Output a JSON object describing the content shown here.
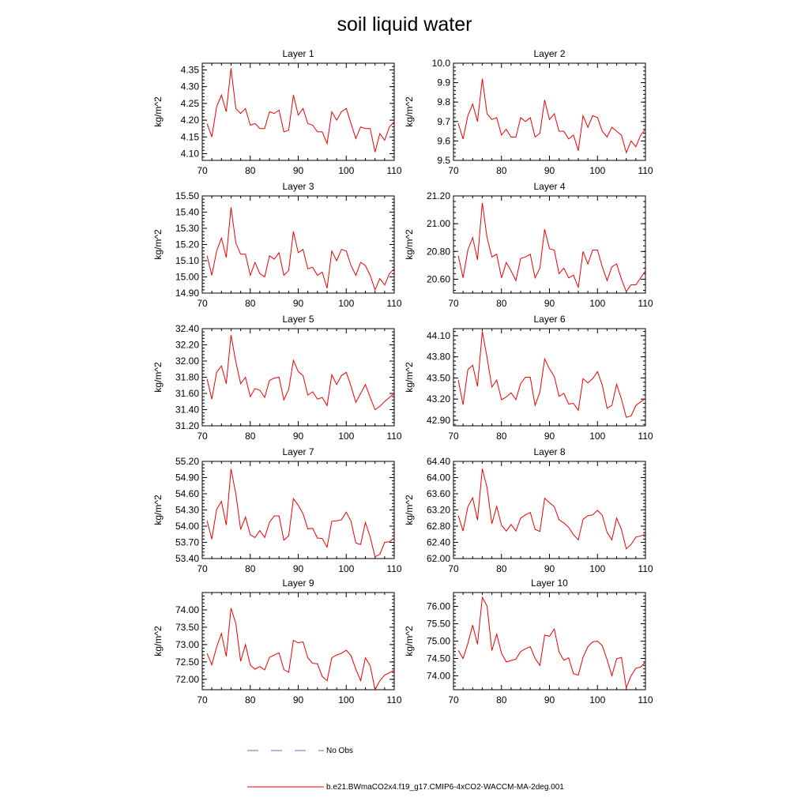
{
  "chart_data": {
    "title": "soil liquid water",
    "type": "line",
    "xlim": [
      70,
      110
    ],
    "xticks": [
      "70",
      "80",
      "90",
      "100",
      "110"
    ],
    "x": [
      71,
      72,
      73,
      74,
      75,
      76,
      77,
      78,
      79,
      80,
      81,
      82,
      83,
      84,
      85,
      86,
      87,
      88,
      89,
      90,
      91,
      92,
      93,
      94,
      95,
      96,
      97,
      98,
      99,
      100,
      101,
      102,
      103,
      104,
      105,
      106,
      107,
      108,
      109,
      110
    ],
    "legend": [
      {
        "label": "No Obs",
        "style": "dashed",
        "color": "#6a6ad0"
      },
      {
        "label": "b.e21.BWmaCO2x4.f19_g17.CMIP6-4xCO2-WACCM-MA-2deg.001",
        "style": "solid",
        "color": "#ee0000"
      }
    ],
    "panels": [
      {
        "title": "Layer 1",
        "ylabel": "kg/m^2",
        "ylim": [
          4.08,
          4.37
        ],
        "yticks": [
          "4.10",
          "4.15",
          "4.20",
          "4.25",
          "4.30",
          "4.35"
        ],
        "ytick_values": [
          4.1,
          4.15,
          4.2,
          4.25,
          4.3,
          4.35
        ],
        "values": [
          4.19,
          4.15,
          4.24,
          4.275,
          4.225,
          4.355,
          4.235,
          4.22,
          4.235,
          4.185,
          4.19,
          4.175,
          4.175,
          4.225,
          4.22,
          4.23,
          4.165,
          4.17,
          4.275,
          4.215,
          4.235,
          4.19,
          4.185,
          4.165,
          4.165,
          4.13,
          4.225,
          4.2,
          4.225,
          4.235,
          4.19,
          4.145,
          4.18,
          4.175,
          4.175,
          4.105,
          4.16,
          4.14,
          4.18,
          4.195
        ]
      },
      {
        "title": "Layer 2",
        "ylabel": "kg/m^2",
        "ylim": [
          9.5,
          10.0
        ],
        "yticks": [
          "9.5",
          "9.6",
          "9.7",
          "9.8",
          "9.9",
          "10.0"
        ],
        "ytick_values": [
          9.5,
          9.6,
          9.7,
          9.8,
          9.9,
          10.0
        ],
        "values": [
          9.69,
          9.61,
          9.73,
          9.79,
          9.7,
          9.92,
          9.74,
          9.71,
          9.72,
          9.63,
          9.66,
          9.62,
          9.62,
          9.72,
          9.7,
          9.72,
          9.62,
          9.64,
          9.81,
          9.71,
          9.74,
          9.65,
          9.65,
          9.61,
          9.63,
          9.55,
          9.73,
          9.67,
          9.73,
          9.72,
          9.65,
          9.62,
          9.67,
          9.65,
          9.63,
          9.54,
          9.6,
          9.57,
          9.63,
          9.66
        ]
      },
      {
        "title": "Layer 3",
        "ylabel": "kg/m^2",
        "ylim": [
          14.9,
          15.5
        ],
        "yticks": [
          "14.90",
          "15.00",
          "15.10",
          "15.20",
          "15.30",
          "15.40",
          "15.50"
        ],
        "ytick_values": [
          14.9,
          15.0,
          15.1,
          15.2,
          15.3,
          15.4,
          15.5
        ],
        "values": [
          15.13,
          15.01,
          15.16,
          15.24,
          15.12,
          15.43,
          15.21,
          15.14,
          15.14,
          15.01,
          15.09,
          15.02,
          15.0,
          15.13,
          15.11,
          15.15,
          15.01,
          15.04,
          15.28,
          15.15,
          15.17,
          15.05,
          15.06,
          15.01,
          15.03,
          14.93,
          15.16,
          15.1,
          15.17,
          15.16,
          15.07,
          15.01,
          15.09,
          15.07,
          15.01,
          14.92,
          14.99,
          14.95,
          15.02,
          15.05
        ]
      },
      {
        "title": "Layer 4",
        "ylabel": "kg/m^2",
        "ylim": [
          20.5,
          21.2
        ],
        "yticks": [
          "20.60",
          "20.80",
          "21.00",
          "21.20"
        ],
        "ytick_values": [
          20.6,
          20.8,
          21.0,
          21.2
        ],
        "values": [
          20.77,
          20.61,
          20.81,
          20.9,
          20.74,
          21.15,
          20.9,
          20.76,
          20.78,
          20.61,
          20.72,
          20.66,
          20.59,
          20.75,
          20.76,
          20.78,
          20.61,
          20.68,
          20.96,
          20.82,
          20.81,
          20.64,
          20.68,
          20.61,
          20.63,
          20.54,
          20.8,
          20.71,
          20.81,
          20.81,
          20.69,
          20.59,
          20.69,
          20.71,
          20.6,
          20.51,
          20.56,
          20.56,
          20.61,
          20.66
        ]
      },
      {
        "title": "Layer 5",
        "ylabel": "kg/m^2",
        "ylim": [
          31.2,
          32.4
        ],
        "yticks": [
          "31.20",
          "31.40",
          "31.60",
          "31.80",
          "32.00",
          "32.20",
          "32.40"
        ],
        "ytick_values": [
          31.2,
          31.4,
          31.6,
          31.8,
          32.0,
          32.2,
          32.4
        ],
        "values": [
          31.78,
          31.53,
          31.86,
          31.94,
          31.72,
          32.32,
          31.99,
          31.72,
          31.8,
          31.56,
          31.66,
          31.64,
          31.55,
          31.76,
          31.79,
          31.8,
          31.52,
          31.65,
          32.01,
          31.87,
          31.82,
          31.58,
          31.62,
          31.53,
          31.55,
          31.45,
          31.83,
          31.71,
          31.82,
          31.86,
          31.69,
          31.49,
          31.6,
          31.71,
          31.55,
          31.4,
          31.44,
          31.5,
          31.55,
          31.6
        ]
      },
      {
        "title": "Layer 6",
        "ylabel": "kg/m^2",
        "ylim": [
          42.82,
          44.2
        ],
        "yticks": [
          "42.90",
          "43.20",
          "43.50",
          "43.80",
          "44.10"
        ],
        "ytick_values": [
          42.9,
          43.2,
          43.5,
          43.8,
          44.1
        ],
        "values": [
          43.47,
          43.12,
          43.62,
          43.68,
          43.38,
          44.16,
          43.79,
          43.37,
          43.47,
          43.19,
          43.23,
          43.29,
          43.19,
          43.42,
          43.51,
          43.51,
          43.11,
          43.3,
          43.77,
          43.63,
          43.52,
          43.24,
          43.28,
          43.13,
          43.14,
          43.04,
          43.49,
          43.43,
          43.49,
          43.59,
          43.4,
          43.07,
          43.11,
          43.41,
          43.2,
          42.94,
          42.96,
          43.11,
          43.16,
          43.21
        ]
      },
      {
        "title": "Layer 7",
        "ylabel": "kg/m^2",
        "ylim": [
          53.4,
          55.2
        ],
        "yticks": [
          "53.40",
          "53.70",
          "54.00",
          "54.30",
          "54.60",
          "54.90",
          "55.20"
        ],
        "ytick_values": [
          53.4,
          53.7,
          54.0,
          54.3,
          54.6,
          54.9,
          55.2
        ],
        "values": [
          54.1,
          53.76,
          54.31,
          54.46,
          54.02,
          55.06,
          54.6,
          53.94,
          54.17,
          53.84,
          53.79,
          53.92,
          53.79,
          54.07,
          54.19,
          54.19,
          53.74,
          53.82,
          54.51,
          54.39,
          54.23,
          53.95,
          53.96,
          53.78,
          53.77,
          53.61,
          54.09,
          54.1,
          54.12,
          54.26,
          54.09,
          53.69,
          53.66,
          54.07,
          53.8,
          53.43,
          53.48,
          53.7,
          53.71,
          53.78
        ]
      },
      {
        "title": "Layer 8",
        "ylabel": "kg/m^2",
        "ylim": [
          62.0,
          64.4
        ],
        "yticks": [
          "62.00",
          "62.40",
          "62.80",
          "63.20",
          "63.60",
          "64.00",
          "64.40"
        ],
        "ytick_values": [
          62.0,
          62.4,
          62.8,
          63.2,
          63.6,
          64.0,
          64.4
        ],
        "values": [
          63.06,
          62.68,
          63.28,
          63.5,
          62.95,
          64.22,
          63.75,
          62.86,
          63.29,
          62.82,
          62.68,
          62.84,
          62.68,
          63.0,
          63.08,
          63.14,
          62.72,
          62.67,
          63.49,
          63.38,
          63.28,
          62.96,
          62.88,
          62.77,
          62.59,
          62.46,
          62.97,
          63.06,
          63.08,
          63.19,
          63.07,
          62.65,
          62.46,
          63.0,
          62.72,
          62.24,
          62.35,
          62.53,
          62.56,
          62.6
        ]
      },
      {
        "title": "Layer 9",
        "ylabel": "kg/m^2",
        "ylim": [
          71.7,
          74.5
        ],
        "yticks": [
          "72.00",
          "72.50",
          "73.00",
          "73.50",
          "74.00"
        ],
        "ytick_values": [
          72.0,
          72.5,
          73.0,
          73.5,
          74.0
        ],
        "values": [
          72.75,
          72.42,
          72.93,
          73.32,
          72.66,
          74.05,
          73.61,
          72.52,
          73.0,
          72.41,
          72.29,
          72.37,
          72.27,
          72.63,
          72.7,
          72.76,
          72.28,
          72.2,
          73.12,
          73.05,
          73.08,
          72.62,
          72.46,
          72.45,
          72.08,
          71.96,
          72.62,
          72.7,
          72.75,
          72.84,
          72.68,
          72.29,
          71.96,
          72.62,
          72.39,
          71.7,
          71.96,
          72.12,
          72.19,
          72.26
        ]
      },
      {
        "title": "Layer 10",
        "ylabel": "kg/m^2",
        "ylim": [
          73.6,
          76.4
        ],
        "yticks": [
          "74.00",
          "74.50",
          "75.00",
          "75.50",
          "76.00"
        ],
        "ytick_values": [
          74.0,
          74.5,
          75.0,
          75.5,
          76.0
        ],
        "values": [
          74.73,
          74.5,
          74.93,
          75.46,
          74.91,
          76.26,
          76.01,
          74.73,
          75.2,
          74.65,
          74.4,
          74.44,
          74.48,
          74.7,
          74.78,
          74.84,
          74.5,
          74.3,
          75.17,
          75.14,
          75.35,
          74.69,
          74.45,
          74.52,
          74.06,
          74.02,
          74.53,
          74.84,
          74.98,
          75.0,
          74.87,
          74.47,
          74.0,
          74.49,
          74.53,
          73.66,
          74.0,
          74.22,
          74.25,
          74.4
        ]
      }
    ]
  }
}
